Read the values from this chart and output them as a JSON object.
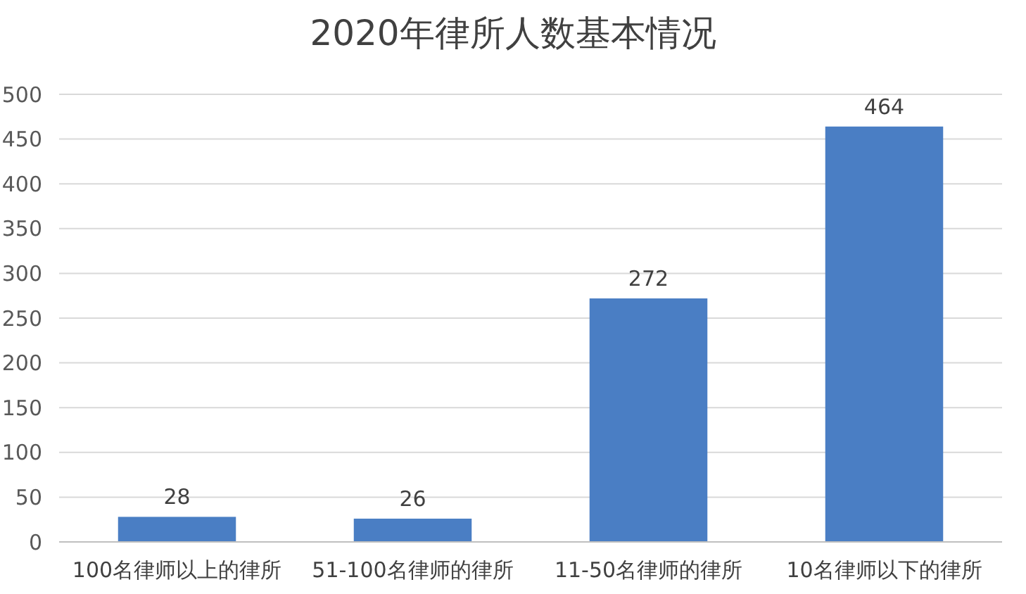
{
  "chart_data": {
    "type": "bar",
    "title": "2020年律所人数基本情况",
    "categories": [
      "100名律师以上的律所",
      "51-100名律师的律所",
      "11-50名律师的律所",
      "10名律师以下的律所"
    ],
    "values": [
      28,
      26,
      272,
      464
    ],
    "color": "#4a7ec4",
    "ylim": [
      0,
      500
    ],
    "yticks": [
      0,
      50,
      100,
      150,
      200,
      250,
      300,
      350,
      400,
      450,
      500
    ],
    "grid": true,
    "data_labels": true
  }
}
